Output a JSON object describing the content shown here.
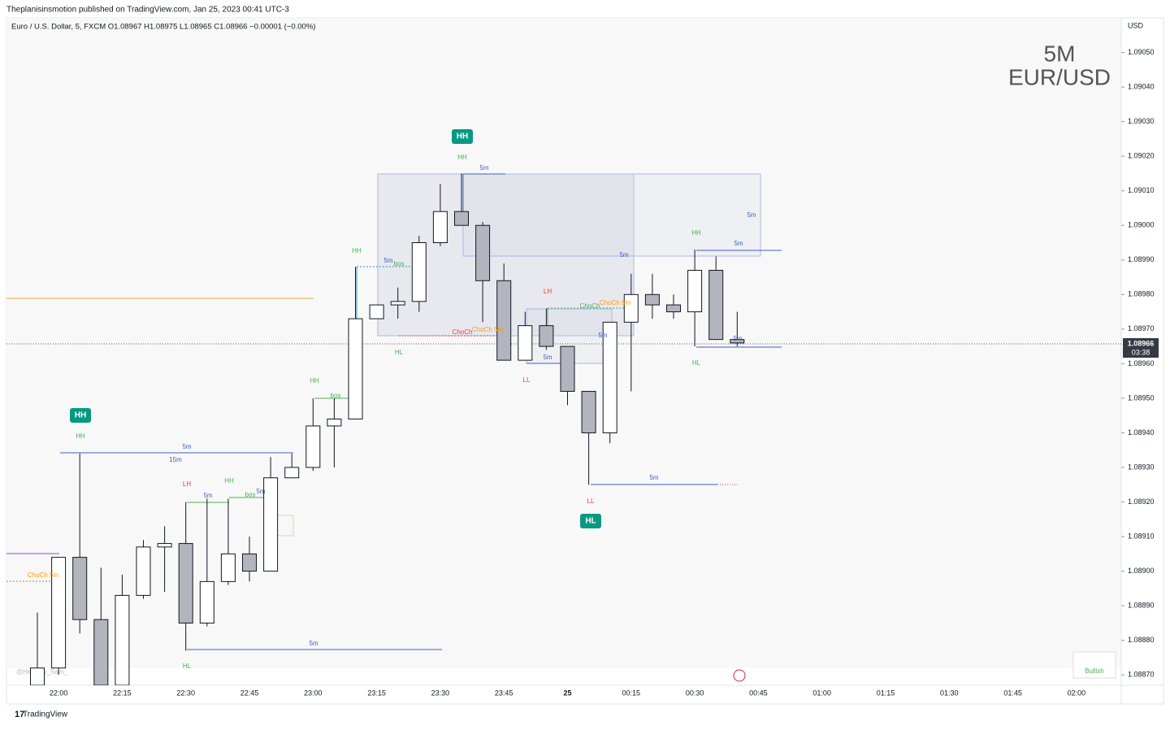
{
  "header": {
    "publisher": "Theplanisinsmotion published on TradingView.com, Jan 25, 2023 00:41 UTC-3",
    "symbol": "Euro / U.S. Dollar, 5, FXCM  O1.08967  H1.08975  L1.08965  C1.08966  −0.00001 (−0.00%)"
  },
  "footer": "TradingView",
  "chart_data": {
    "type": "candlestick",
    "currency": "USD",
    "watermark": [
      "5M",
      "EUR/USD"
    ],
    "handle": "@Hephew_Sam_",
    "indicator_label": "Bullish",
    "last_price": 1.08966,
    "countdown": "03:38",
    "colors": {
      "up": "#ffffff",
      "down": "#b2b5be",
      "border": "#131722"
    },
    "categories": [
      null,
      "22:00",
      null,
      null,
      "22:15",
      null,
      null,
      "22:30",
      null,
      null,
      "22:45",
      null,
      null,
      "23:00",
      null,
      null,
      "23:15",
      null,
      null,
      "23:30",
      null,
      null,
      "23:45",
      null,
      null,
      "25",
      null,
      null,
      "00:15",
      null,
      null,
      "00:30",
      null,
      null,
      "00:45",
      null,
      null,
      "01:00",
      null,
      null,
      "01:15",
      null,
      null,
      "01:30",
      null,
      null,
      "01:45",
      null,
      null,
      "02:00"
    ],
    "open": [
      1.08867,
      1.08872,
      1.08904,
      1.08886,
      1.08867,
      1.08893,
      1.08907,
      1.08908,
      1.08885,
      1.08897,
      1.08905,
      1.089,
      1.08927,
      1.0893,
      1.08942,
      1.08944,
      1.08973,
      1.08977,
      1.08978,
      1.08995,
      1.09004,
      1.09,
      1.08984,
      1.08961,
      1.08971,
      1.08965,
      1.08952,
      1.0894,
      1.08972,
      1.0898,
      1.08977,
      1.08975,
      1.08987,
      1.08967,
      null,
      null,
      null,
      null,
      null,
      null,
      null,
      null,
      null,
      null,
      null,
      null,
      null,
      null,
      null,
      null
    ],
    "high": [
      1.08888,
      1.08904,
      1.08934,
      1.08901,
      1.08899,
      1.08909,
      1.08913,
      1.0892,
      1.08921,
      1.08921,
      1.0891,
      1.08933,
      1.08934,
      1.0895,
      1.0895,
      1.08988,
      1.08977,
      1.08982,
      1.08997,
      1.09012,
      1.09015,
      1.09001,
      1.08989,
      1.08975,
      1.08976,
      1.08965,
      1.08952,
      1.08972,
      1.08986,
      1.08986,
      1.0898,
      1.08993,
      1.08991,
      1.08975,
      null,
      null,
      null,
      null,
      null,
      null,
      null,
      null,
      null,
      null,
      null,
      null,
      null,
      null,
      null,
      null
    ],
    "low": [
      1.08865,
      1.0887,
      1.08882,
      1.08865,
      1.08865,
      1.08892,
      1.08894,
      1.08877,
      1.08884,
      1.08896,
      1.08897,
      1.089,
      1.08927,
      1.08929,
      1.0893,
      1.08944,
      1.08973,
      1.08973,
      1.08975,
      1.08994,
      1.09,
      1.08972,
      1.08961,
      1.08961,
      1.08964,
      1.08948,
      1.08925,
      1.08937,
      1.08952,
      1.08973,
      1.08973,
      1.08965,
      1.08967,
      1.08965,
      null,
      null,
      null,
      null,
      null,
      null,
      null,
      null,
      null,
      null,
      null,
      null,
      null,
      null,
      null,
      null
    ],
    "close": [
      1.08872,
      1.08904,
      1.08886,
      1.08867,
      1.08893,
      1.08907,
      1.08908,
      1.08885,
      1.08897,
      1.08905,
      1.089,
      1.08927,
      1.0893,
      1.08942,
      1.08944,
      1.08973,
      1.08977,
      1.08978,
      1.08995,
      1.09004,
      1.09,
      1.08984,
      1.08961,
      1.08971,
      1.08965,
      1.08952,
      1.0894,
      1.08972,
      1.0898,
      1.08977,
      1.08975,
      1.08987,
      1.08967,
      1.08966,
      null,
      null,
      null,
      null,
      null,
      null,
      null,
      null,
      null,
      null,
      null,
      null,
      null,
      null,
      null,
      null
    ],
    "ylim": [
      1.08867,
      1.0906
    ],
    "yticks": [
      {
        "value": 1.0887,
        "label": "1.08870"
      },
      {
        "value": 1.0888,
        "label": "1.08880"
      },
      {
        "value": 1.0889,
        "label": "1.08890"
      },
      {
        "value": 1.089,
        "label": "1.08900"
      },
      {
        "value": 1.0891,
        "label": "1.08910"
      },
      {
        "value": 1.0892,
        "label": "1.08920"
      },
      {
        "value": 1.0893,
        "label": "1.08930"
      },
      {
        "value": 1.0894,
        "label": "1.08940"
      },
      {
        "value": 1.0895,
        "label": "1.08950"
      },
      {
        "value": 1.0896,
        "label": "1.08960"
      },
      {
        "value": 1.0897,
        "label": "1.08970"
      },
      {
        "value": 1.0898,
        "label": "1.08980"
      },
      {
        "value": 1.0899,
        "label": "1.08990"
      },
      {
        "value": 1.09,
        "label": "1.09000"
      },
      {
        "value": 1.0901,
        "label": "1.09010"
      },
      {
        "value": 1.0902,
        "label": "1.09020"
      },
      {
        "value": 1.0903,
        "label": "1.09030"
      },
      {
        "value": 1.0904,
        "label": "1.09040"
      },
      {
        "value": 1.0905,
        "label": "1.09050"
      }
    ],
    "annotations": [
      "HH",
      "HH",
      "HH",
      "HH",
      "HL",
      "LL",
      "HH",
      "HL",
      "HH",
      "bos",
      "LH",
      "HH",
      "5m",
      "bos",
      "5m",
      "5m",
      "15m",
      "5m",
      "HL",
      "ChoCh 5m",
      "5m",
      "bos",
      "5m",
      "ChoCh",
      "ChoCh 5m",
      "LH",
      "LL",
      "5m",
      "5m",
      "5m",
      "ChoCh",
      "ChoCh 5m",
      "5m",
      "HH",
      "5m",
      "HL",
      "5m",
      "5m"
    ]
  }
}
